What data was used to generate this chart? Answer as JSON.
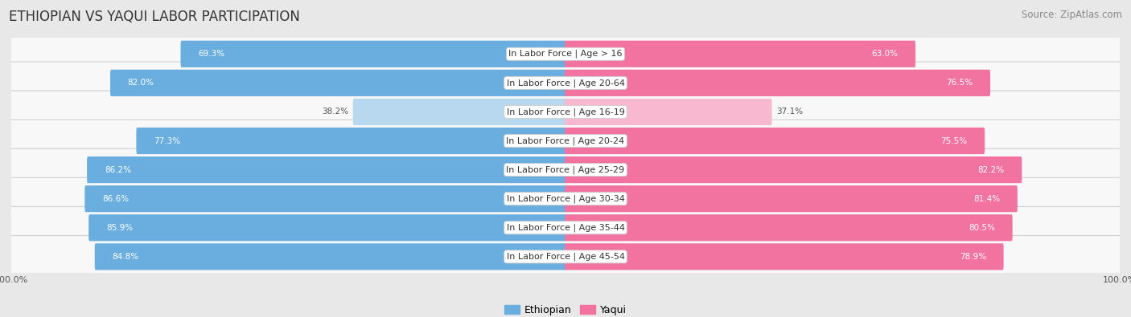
{
  "title": "ETHIOPIAN VS YAQUI LABOR PARTICIPATION",
  "source": "Source: ZipAtlas.com",
  "categories": [
    "In Labor Force | Age > 16",
    "In Labor Force | Age 20-64",
    "In Labor Force | Age 16-19",
    "In Labor Force | Age 20-24",
    "In Labor Force | Age 25-29",
    "In Labor Force | Age 30-34",
    "In Labor Force | Age 35-44",
    "In Labor Force | Age 45-54"
  ],
  "ethiopian_values": [
    69.3,
    82.0,
    38.2,
    77.3,
    86.2,
    86.6,
    85.9,
    84.8
  ],
  "yaqui_values": [
    63.0,
    76.5,
    37.1,
    75.5,
    82.2,
    81.4,
    80.5,
    78.9
  ],
  "ethiopian_color": "#6aaee0",
  "ethiopian_color_light": "#b8d8f0",
  "yaqui_color": "#f272a0",
  "yaqui_color_light": "#f8b8cf",
  "bg_color": "#e8e8e8",
  "row_bg_color": "#f8f8f8",
  "title_fontsize": 12,
  "source_fontsize": 8.5,
  "label_fontsize": 8,
  "value_fontsize": 7.5,
  "legend_fontsize": 9,
  "axis_label_fontsize": 8
}
